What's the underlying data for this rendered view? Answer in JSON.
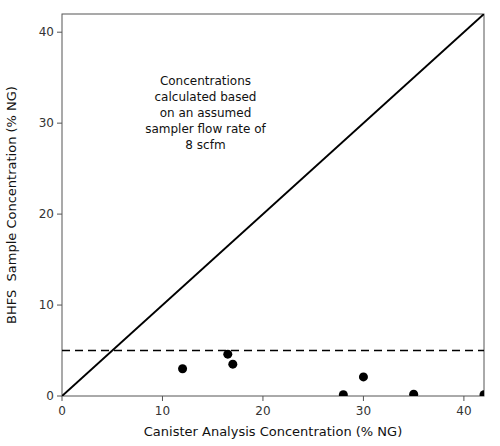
{
  "chart_data": {
    "type": "scatter",
    "x": [
      12,
      16.5,
      17.0,
      28,
      30,
      35,
      42
    ],
    "values": [
      3.0,
      4.6,
      3.5,
      0.15,
      2.1,
      0.2,
      0.15
    ],
    "color": "#000000",
    "xlim": [
      0,
      42
    ],
    "ylim": [
      0,
      42
    ],
    "xticks": [
      0,
      10,
      20,
      30,
      40
    ],
    "yticks": [
      0,
      10,
      20,
      30,
      40
    ],
    "xlabel": "Canister Analysis Concentration (% NG)",
    "ylabel": "BHFS  Sample Concentration (% NG)",
    "reference_lines": [
      {
        "x": [
          0,
          42
        ],
        "y": [
          0,
          42
        ],
        "color": "#000000",
        "line_style": "solid"
      },
      {
        "y": 5,
        "color": "#000000",
        "line_style": "dashed"
      }
    ],
    "annotations": [
      "Concentrations\ncalculated based\non an assumed\nsampler flow rate of\n8 scfm"
    ],
    "grid": false
  }
}
